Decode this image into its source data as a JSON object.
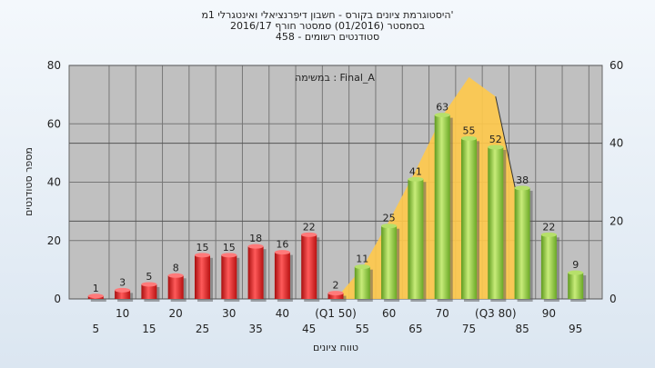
{
  "chart_data": {
    "type": "bar",
    "title": [
      "היסטוגרמת ציונים בקורס - חשבון דיפרנציאלי ואינטגרלי 1מ'",
      "בסמסטר  (01/2016)  סמסטר חורף 2016/17",
      "סטודנטים רשומים - 458"
    ],
    "annotation": "במשימה : Final_A",
    "xlabel": "טווח ציונים",
    "ylabel": "מספר סטודנטים",
    "ylim": [
      0,
      80
    ],
    "y_ticks": [
      0,
      20,
      40,
      60,
      80
    ],
    "y2lim": [
      0,
      60
    ],
    "y2_ticks": [
      0,
      20,
      40,
      60
    ],
    "categories": [
      "5",
      "10",
      "15",
      "20",
      "25",
      "30",
      "35",
      "40",
      "45",
      "(Q1 50)",
      "55",
      "60",
      "65",
      "70",
      "75",
      "(Q3 80)",
      "85",
      "90",
      "95"
    ],
    "values": [
      1,
      3,
      5,
      8,
      15,
      15,
      18,
      16,
      22,
      2,
      11,
      25,
      41,
      63,
      55,
      52,
      38,
      22,
      9
    ],
    "colors": {
      "fail": "#e02020",
      "pass": "#8cc43c",
      "curve": "#ffc94a",
      "plot_bg": "#c0c0c0"
    },
    "pass_from_index": 10,
    "curve_y2": [
      0,
      8,
      20,
      33,
      47,
      57,
      52,
      20
    ]
  }
}
